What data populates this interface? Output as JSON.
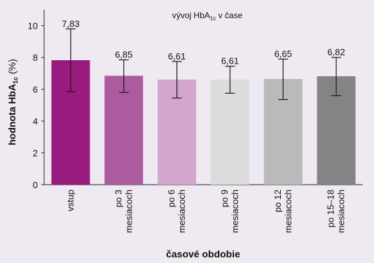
{
  "chart_data": {
    "type": "bar",
    "title": "vývoj HbA1c v čase",
    "title_parts": {
      "main": "vývoj HbA",
      "sub": "1c",
      "tail": " v čase"
    },
    "ylabel": "hodnota HbA1c (%)",
    "ylabel_parts": {
      "main": "hodnota HbA",
      "sub": "1c",
      "tail": " (%)"
    },
    "xlabel": "časové obdobie",
    "ylim": [
      0,
      11
    ],
    "yticks": [
      0,
      2,
      4,
      6,
      8,
      10
    ],
    "grid": false,
    "categories": [
      [
        "vstup"
      ],
      [
        "po 3",
        "mesiacoch"
      ],
      [
        "po 6",
        "mesiacoch"
      ],
      [
        "po 9",
        "mesiacoch"
      ],
      [
        "po 12",
        "mesiacoch"
      ],
      [
        "po 15–18",
        "mesiacoch"
      ]
    ],
    "values": [
      7.83,
      6.85,
      6.61,
      6.61,
      6.65,
      6.82
    ],
    "value_labels": [
      "7,83",
      "6,85",
      "6,61",
      "6,61",
      "6,65",
      "6,82"
    ],
    "error_low": [
      5.85,
      5.8,
      5.45,
      5.75,
      5.35,
      5.6
    ],
    "error_high": [
      9.8,
      7.85,
      7.75,
      7.45,
      7.9,
      8.0
    ],
    "bar_colors": [
      "#9a1b7e",
      "#ac5ba1",
      "#d3a6d0",
      "#dcdcdc",
      "#bababa",
      "#848484"
    ]
  }
}
